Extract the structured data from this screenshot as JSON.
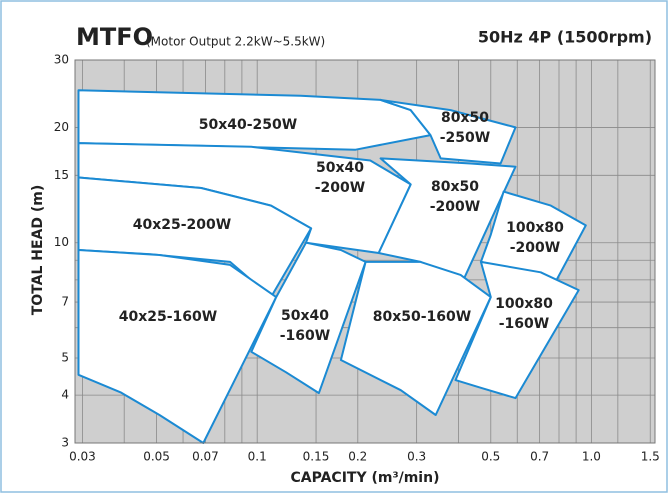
{
  "chart_data": {
    "type": "region",
    "title": "MTFO",
    "subtitle": "(Motor Output 2.2kW~5.5kW)",
    "annotation": "50Hz 4P (1500rpm)",
    "xlabel": "CAPACITY (m³/min)",
    "ylabel": "TOTAL HEAD (m)",
    "xscale": "log",
    "yscale": "log",
    "xlim": [
      0.0285,
      1.55
    ],
    "ylim": [
      3,
      30
    ],
    "xticks": [
      0.03,
      0.05,
      0.07,
      0.1,
      0.15,
      0.2,
      0.3,
      0.5,
      0.7,
      {
        "value": 1,
        "label": "1.0"
      },
      1.5
    ],
    "yticks": [
      3,
      4,
      5,
      7,
      10,
      15,
      20,
      30
    ],
    "xminor": [
      0.04,
      0.06,
      0.08,
      0.09,
      0.4,
      0.6,
      0.8,
      0.9,
      1.2
    ],
    "yminor": [
      6,
      8,
      9
    ],
    "grid": true,
    "color": "#1b8ad3",
    "background": "#cfcfcf",
    "regions": [
      {
        "label": [
          "50x40-250W"
        ],
        "x": [
          0.0292,
          0.135,
          0.234,
          0.288,
          0.33,
          0.197,
          0.068,
          0.0292
        ],
        "y": [
          25.0,
          24.2,
          23.6,
          22.2,
          19.1,
          17.5,
          17.9,
          18.2
        ]
      },
      {
        "label": [
          "80x50",
          "-250W"
        ],
        "x": [
          0.234,
          0.379,
          0.593,
          0.535,
          0.354,
          0.33,
          0.288
        ],
        "y": [
          23.6,
          22.2,
          20.0,
          16.1,
          16.6,
          19.1,
          22.2
        ]
      },
      {
        "label": [
          "50x40",
          "-200W"
        ],
        "x": [
          0.0292,
          0.096,
          0.218,
          0.288,
          0.231,
          0.14,
          0.145,
          0.11,
          0.068,
          0.0292
        ],
        "y": [
          18.2,
          17.8,
          16.4,
          14.2,
          9.4,
          10,
          10.9,
          12.5,
          13.9,
          14.8
        ]
      },
      {
        "label": [
          "80x50",
          "-200W"
        ],
        "x": [
          0.288,
          0.234,
          0.435,
          0.593,
          0.414,
          0.308,
          0.231
        ],
        "y": [
          14.2,
          16.6,
          16.1,
          15.8,
          8.0,
          8.91,
          9.4
        ]
      },
      {
        "label": [
          "100x80",
          "-200W"
        ],
        "x": [
          0.546,
          0.756,
          0.962,
          0.787,
          0.467,
          0.5
        ],
        "y": [
          13.6,
          12.5,
          11.1,
          8.0,
          8.91,
          10.5
        ]
      },
      {
        "label": [
          "40x25-200W"
        ],
        "x": [
          0.0292,
          0.068,
          0.11,
          0.145,
          0.11,
          0.083,
          0.048,
          0.0292
        ],
        "y": [
          14.8,
          13.9,
          12.5,
          10.9,
          7.21,
          8.91,
          9.33,
          9.57
        ]
      },
      {
        "label": [
          "40x25-160W"
        ],
        "x": [
          0.0292,
          0.051,
          0.083,
          0.114,
          0.069,
          0.051,
          0.039,
          0.0292
        ],
        "y": [
          9.57,
          9.29,
          8.75,
          7.21,
          3.0,
          3.55,
          4.07,
          4.52
        ]
      },
      {
        "label": [
          "50x40",
          "-160W"
        ],
        "x": [
          0.14,
          0.178,
          0.211,
          0.153,
          0.122,
          0.096,
          0.114
        ],
        "y": [
          10,
          9.57,
          8.91,
          4.05,
          4.59,
          5.19,
          7.21
        ]
      },
      {
        "label": [
          "80x50-160W"
        ],
        "x": [
          0.211,
          0.308,
          0.406,
          0.5,
          0.342,
          0.269,
          0.178
        ],
        "y": [
          8.91,
          8.91,
          8.24,
          7.21,
          3.55,
          4.12,
          4.94
        ]
      },
      {
        "label": [
          "100x80",
          "-160W"
        ],
        "x": [
          0.467,
          0.705,
          0.916,
          0.593,
          0.467,
          0.392,
          0.5
        ],
        "y": [
          8.91,
          8.37,
          7.52,
          3.93,
          4.18,
          4.38,
          7.21
        ]
      }
    ]
  }
}
